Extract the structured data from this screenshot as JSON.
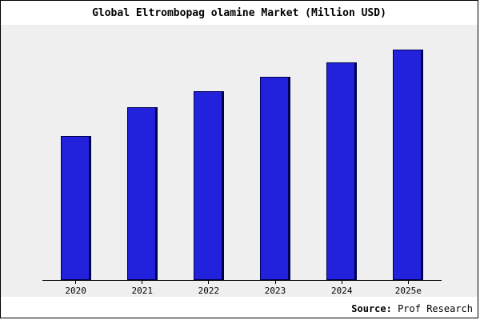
{
  "chart_data": {
    "type": "bar",
    "title": "Global Eltrombopag olamine Market (Million USD)",
    "categories": [
      "2020",
      "2021",
      "2022",
      "2023",
      "2024",
      "2025e"
    ],
    "values": [
      100,
      120,
      131,
      141,
      151,
      160
    ],
    "xlabel": "",
    "ylabel": "",
    "ylim": [
      0,
      175
    ],
    "grid": false,
    "legend_position": "none",
    "bar_color": "#2222dd",
    "bar_border_color": "#000050",
    "plot_background": "#efefef"
  },
  "footer": {
    "source_label": "Source:",
    "source_value": " Prof Research"
  }
}
